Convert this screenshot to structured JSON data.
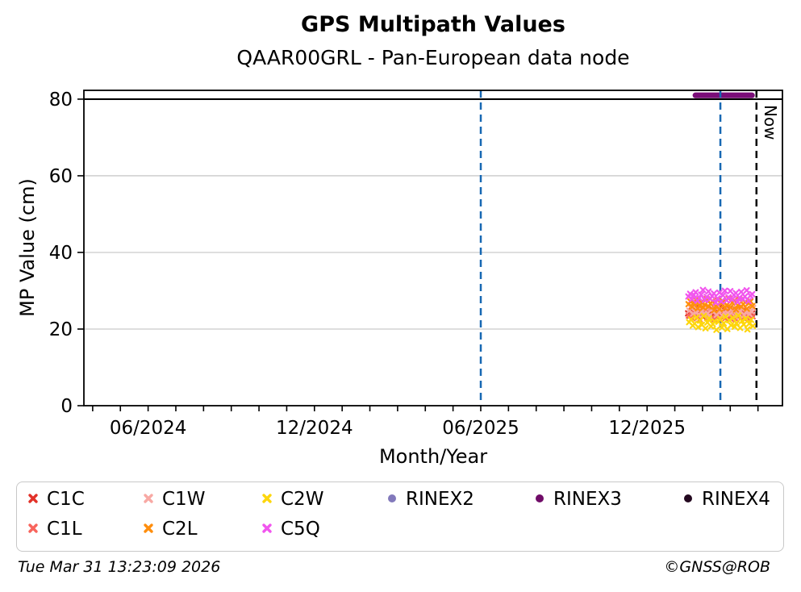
{
  "header": {
    "title": "GPS Multipath Values",
    "subtitle": "QAAR00GRL - Pan-European data node"
  },
  "axes": {
    "xlabel": "Month/Year",
    "ylabel": "MP Value (cm)",
    "yticks": [
      0,
      20,
      40,
      60,
      80
    ],
    "xticks": [
      {
        "label": "06/2024",
        "year": 2024.4167
      },
      {
        "label": "12/2024",
        "year": 2024.9167
      },
      {
        "label": "06/2025",
        "year": 2025.4167
      },
      {
        "label": "12/2025",
        "year": 2025.9167
      }
    ]
  },
  "annotations": {
    "now_label": "Now"
  },
  "legend": {
    "items": [
      {
        "label": "C1C",
        "marker": "x",
        "color": "#e23128"
      },
      {
        "label": "C1L",
        "marker": "x",
        "color": "#f8645c"
      },
      {
        "label": "C1W",
        "marker": "x",
        "color": "#f8a9a4"
      },
      {
        "label": "C2L",
        "marker": "x",
        "color": "#ff8e0d"
      },
      {
        "label": "C2W",
        "marker": "x",
        "color": "#fdd60c"
      },
      {
        "label": "C5Q",
        "marker": "x",
        "color": "#f155ee"
      },
      {
        "label": "RINEX2",
        "marker": "dot",
        "color": "#8279bb"
      },
      {
        "label": "RINEX3",
        "marker": "dot",
        "color": "#700c68"
      },
      {
        "label": "RINEX4",
        "marker": "dot",
        "color": "#23081f"
      }
    ]
  },
  "footer": {
    "timestamp": "Tue Mar 31 13:23:09 2026",
    "credit": "©GNSS@ROB"
  },
  "chart_data": {
    "type": "scatter",
    "title": "GPS Multipath Values",
    "subtitle": "QAAR00GRL - Pan-European data node",
    "xlabel": "Month/Year",
    "ylabel": "MP Value (cm)",
    "xlim_decimal_year": [
      2024.2236,
      2026.3236
    ],
    "ylim": [
      0,
      82.3
    ],
    "grid": {
      "horizontal_gridlines_at": [
        20,
        40,
        60
      ],
      "color": "#c9c9c9"
    },
    "threshold_line": {
      "y": 80,
      "color": "#000000"
    },
    "legend_position": "bottom",
    "series_x_start_decimal_year": 2026.04,
    "series_x_step_days": 2,
    "series": [
      {
        "name": "C1C",
        "marker": "x",
        "color": "#e23128",
        "day_offset": 0.0,
        "values": [
          24.1,
          23.5,
          24.8,
          25.2,
          23.9,
          24.5,
          25.6,
          24.2,
          23.3,
          24.9,
          25.1,
          23.7,
          24.4,
          25.3,
          23.6,
          24.0,
          24.7,
          25.5,
          23.8,
          24.3,
          25.0,
          23.4,
          24.6,
          25.2,
          23.9,
          24.1,
          24.8,
          23.5,
          25.4,
          24.2,
          23.7,
          24.9,
          25.1,
          23.6,
          24.4,
          24.0
        ]
      },
      {
        "name": "C1L",
        "marker": "x",
        "color": "#f8645c",
        "day_offset": 0.8,
        "values": [
          23.5,
          24.2,
          22.8,
          23.9,
          24.6,
          23.1,
          22.5,
          24.0,
          23.6,
          24.4,
          22.9,
          23.3,
          24.8,
          23.0,
          22.6,
          24.1,
          23.7,
          22.4,
          24.5,
          23.2,
          22.8,
          23.8,
          24.3,
          22.7,
          23.4,
          24.0,
          22.5,
          23.9,
          24.6,
          23.1,
          22.9,
          23.5,
          24.2,
          22.6,
          23.8,
          23.3
        ]
      },
      {
        "name": "C1W",
        "marker": "x",
        "color": "#f8a9a4",
        "day_offset": 1.4,
        "values": [
          24.8,
          25.5,
          24.0,
          25.9,
          24.4,
          23.6,
          25.2,
          24.7,
          23.9,
          25.6,
          24.2,
          23.4,
          25.0,
          24.5,
          25.8,
          23.7,
          24.9,
          25.3,
          23.5,
          24.3,
          25.7,
          24.1,
          23.8,
          25.1,
          24.6,
          23.3,
          25.4,
          24.0,
          24.8,
          25.2,
          23.6,
          24.4,
          25.0,
          23.9,
          24.7,
          25.5
        ]
      },
      {
        "name": "C2L",
        "marker": "x",
        "color": "#ff8e0d",
        "day_offset": 0.5,
        "values": [
          26.5,
          27.2,
          25.8,
          26.9,
          27.6,
          25.4,
          26.1,
          27.0,
          25.6,
          26.4,
          27.8,
          25.9,
          26.6,
          27.3,
          24.9,
          26.0,
          27.5,
          25.2,
          26.8,
          27.1,
          25.5,
          26.3,
          28.0,
          25.7,
          26.9,
          27.4,
          25.1,
          26.2,
          27.7,
          25.8,
          26.5,
          27.0,
          25.3,
          26.7,
          27.2,
          26.0
        ]
      },
      {
        "name": "C2W",
        "marker": "x",
        "color": "#fdd60c",
        "day_offset": 1.1,
        "values": [
          21.8,
          22.5,
          20.9,
          21.4,
          23.0,
          20.5,
          22.2,
          21.1,
          23.4,
          20.2,
          21.7,
          22.8,
          20.7,
          21.3,
          22.0,
          19.8,
          21.9,
          22.6,
          20.4,
          21.5,
          23.2,
          20.0,
          22.3,
          21.0,
          22.9,
          20.6,
          21.6,
          23.5,
          20.3,
          22.1,
          21.2,
          22.7,
          19.9,
          21.4,
          22.4,
          20.8
        ]
      },
      {
        "name": "C5Q",
        "marker": "x",
        "color": "#f155ee",
        "day_offset": 0.3,
        "values": [
          28.5,
          29.2,
          27.8,
          28.9,
          29.6,
          27.4,
          28.1,
          29.0,
          30.2,
          27.6,
          28.4,
          29.8,
          27.9,
          28.6,
          29.3,
          26.9,
          28.0,
          29.5,
          27.2,
          28.8,
          30.0,
          27.5,
          28.3,
          29.9,
          27.7,
          28.9,
          29.4,
          27.1,
          28.2,
          29.7,
          27.8,
          28.5,
          30.1,
          27.3,
          28.7,
          29.1
        ]
      }
    ],
    "series_with_no_data": [
      "RINEX2",
      "RINEX4"
    ],
    "availability_bars": [
      {
        "name": "RINEX3",
        "color": "#7a0d78",
        "y": 81,
        "from_decimal_year": 2026.062,
        "to_decimal_year": 2026.232
      }
    ],
    "event_lines": [
      {
        "style": "dashed",
        "color": "#1768b3",
        "x_decimal_year": 2025.4167,
        "label": ""
      },
      {
        "style": "dashed",
        "color": "#1768b3",
        "x_decimal_year": 2026.137,
        "label": ""
      },
      {
        "style": "dashed",
        "color": "#000000",
        "x_decimal_year": 2026.2455,
        "label": "Now"
      }
    ]
  }
}
